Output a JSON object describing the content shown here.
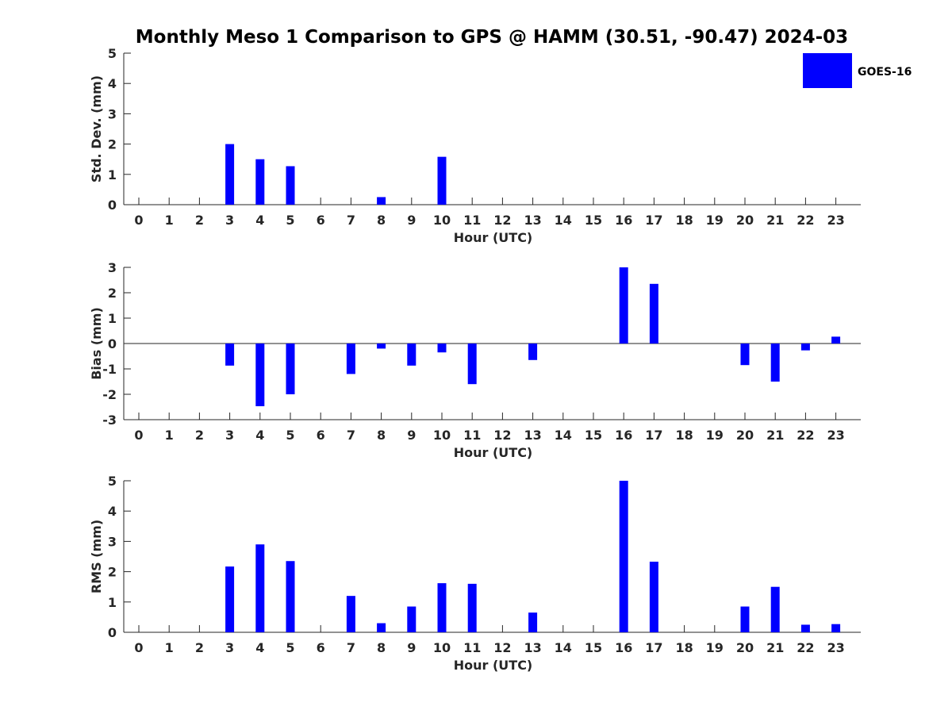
{
  "chart_title": "Monthly Meso 1 Comparison to GPS @ HAMM (30.51, -90.47) 2024-03",
  "legend": {
    "label": "GOES-16",
    "color": "#0000ff",
    "placement": "top-right"
  },
  "chart_data": [
    {
      "type": "bar",
      "xlabel": "Hour (UTC)",
      "ylabel": "Std. Dev. (mm)",
      "ylim": [
        0,
        5
      ],
      "yticks": [
        0,
        1,
        2,
        3,
        4,
        5
      ],
      "categories": [
        0,
        1,
        2,
        3,
        4,
        5,
        6,
        7,
        8,
        9,
        10,
        11,
        12,
        13,
        14,
        15,
        16,
        17,
        18,
        19,
        20,
        21,
        22,
        23
      ],
      "series": [
        {
          "name": "GOES-16",
          "color": "#0000ff",
          "values": [
            null,
            null,
            null,
            2.0,
            1.5,
            1.27,
            null,
            null,
            0.25,
            null,
            1.58,
            null,
            null,
            null,
            null,
            null,
            null,
            null,
            null,
            null,
            null,
            null,
            null,
            null
          ]
        }
      ]
    },
    {
      "type": "bar",
      "xlabel": "Hour (UTC)",
      "ylabel": "Bias (mm)",
      "ylim": [
        -3,
        3
      ],
      "yticks": [
        -3,
        -2,
        -1,
        0,
        1,
        2,
        3
      ],
      "categories": [
        0,
        1,
        2,
        3,
        4,
        5,
        6,
        7,
        8,
        9,
        10,
        11,
        12,
        13,
        14,
        15,
        16,
        17,
        18,
        19,
        20,
        21,
        22,
        23
      ],
      "series": [
        {
          "name": "GOES-16",
          "color": "#0000ff",
          "values": [
            null,
            null,
            null,
            -0.87,
            -2.47,
            -2.0,
            null,
            -1.2,
            -0.2,
            -0.87,
            -0.35,
            -1.6,
            null,
            -0.65,
            null,
            null,
            3.0,
            2.35,
            null,
            null,
            -0.85,
            -1.5,
            -0.27,
            0.27
          ]
        }
      ]
    },
    {
      "type": "bar",
      "xlabel": "Hour (UTC)",
      "ylabel": "RMS (mm)",
      "ylim": [
        0,
        5
      ],
      "yticks": [
        0,
        1,
        2,
        3,
        4,
        5
      ],
      "categories": [
        0,
        1,
        2,
        3,
        4,
        5,
        6,
        7,
        8,
        9,
        10,
        11,
        12,
        13,
        14,
        15,
        16,
        17,
        18,
        19,
        20,
        21,
        22,
        23
      ],
      "series": [
        {
          "name": "GOES-16",
          "color": "#0000ff",
          "values": [
            null,
            null,
            null,
            2.17,
            2.9,
            2.35,
            null,
            1.2,
            0.3,
            0.85,
            1.62,
            1.6,
            null,
            0.65,
            null,
            null,
            5.0,
            2.33,
            null,
            null,
            0.85,
            1.5,
            0.25,
            0.27
          ]
        }
      ]
    }
  ]
}
